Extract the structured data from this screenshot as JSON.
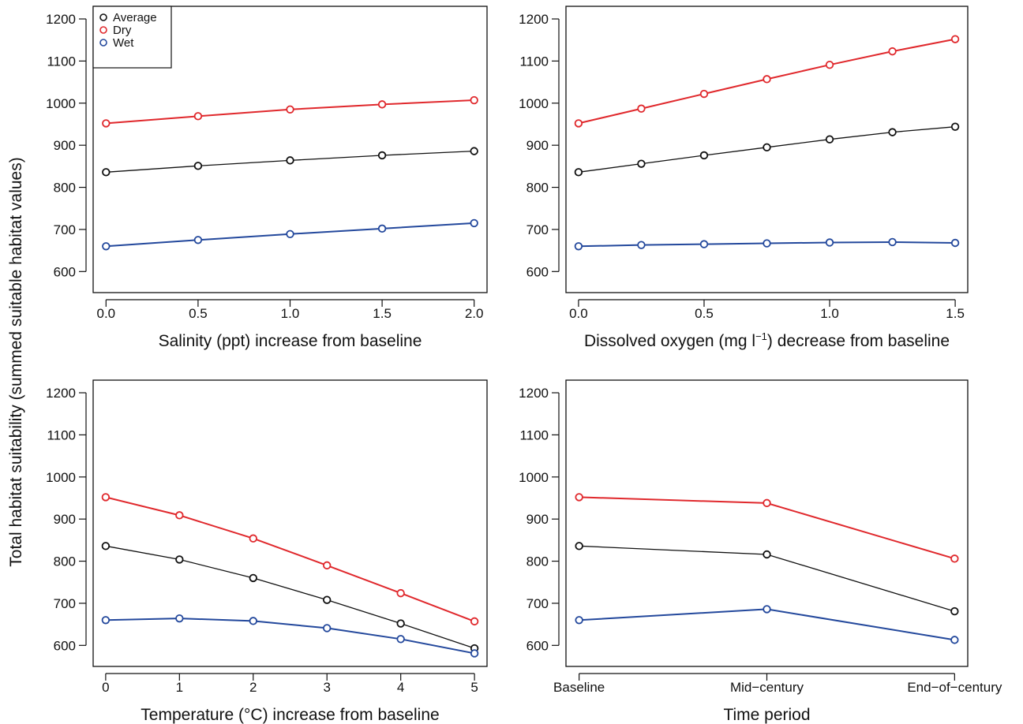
{
  "colors": {
    "Average": "#111111",
    "Dry": "#e0282c",
    "Wet": "#23489c"
  },
  "ylabel": "Total habitat suitability  (summed suitable habitat values)",
  "chart_data": [
    {
      "type": "line",
      "xlabel": "Salinity (ppt) increase from baseline",
      "x": [
        0.0,
        0.5,
        1.0,
        1.5,
        2.0
      ],
      "xticks": [
        "0.0",
        "0.5",
        "1.0",
        "1.5",
        "2.0"
      ],
      "xlim": [
        -0.07,
        2.07
      ],
      "ylim": [
        550,
        1230
      ],
      "yticks": [
        600,
        700,
        800,
        900,
        1000,
        1100,
        1200
      ],
      "legend": {
        "position": "top-left",
        "entries": [
          "Average",
          "Dry",
          "Wet"
        ]
      },
      "series": [
        {
          "name": "Dry",
          "values": [
            952,
            969,
            985,
            997,
            1007
          ]
        },
        {
          "name": "Average",
          "values": [
            836,
            851,
            864,
            876,
            886
          ]
        },
        {
          "name": "Wet",
          "values": [
            660,
            675,
            689,
            702,
            715
          ]
        }
      ]
    },
    {
      "type": "line",
      "xlabel": "Dissolved oxygen (mg l",
      "xlabel_sup": "−1",
      "xlabel_end": ") decrease from baseline",
      "x": [
        0.0,
        0.25,
        0.5,
        0.75,
        1.0,
        1.25,
        1.5
      ],
      "xticks": [
        "0.0",
        "0.5",
        "1.0",
        "1.5"
      ],
      "xtick_values": [
        0.0,
        0.5,
        1.0,
        1.5
      ],
      "xlim": [
        -0.05,
        1.55
      ],
      "ylim": [
        550,
        1230
      ],
      "yticks": [
        600,
        700,
        800,
        900,
        1000,
        1100,
        1200
      ],
      "series": [
        {
          "name": "Dry",
          "values": [
            952,
            987,
            1022,
            1057,
            1091,
            1123,
            1152
          ]
        },
        {
          "name": "Average",
          "values": [
            836,
            856,
            876,
            895,
            914,
            931,
            944
          ]
        },
        {
          "name": "Wet",
          "values": [
            660,
            663,
            665,
            667,
            669,
            670,
            668
          ]
        }
      ]
    },
    {
      "type": "line",
      "xlabel": "Temperature (°C) increase from baseline",
      "x": [
        0,
        1,
        2,
        3,
        4,
        5
      ],
      "xticks": [
        "0",
        "1",
        "2",
        "3",
        "4",
        "5"
      ],
      "xlim": [
        -0.17,
        5.17
      ],
      "ylim": [
        550,
        1230
      ],
      "yticks": [
        600,
        700,
        800,
        900,
        1000,
        1100,
        1200
      ],
      "series": [
        {
          "name": "Dry",
          "values": [
            952,
            909,
            854,
            790,
            724,
            657
          ]
        },
        {
          "name": "Average",
          "values": [
            836,
            804,
            760,
            708,
            652,
            593
          ]
        },
        {
          "name": "Wet",
          "values": [
            660,
            664,
            658,
            641,
            615,
            581
          ]
        }
      ]
    },
    {
      "type": "line",
      "xlabel": "Time period",
      "x": [
        0,
        1,
        2
      ],
      "xticks": [
        "Baseline",
        "Mid−century",
        "End−of−century"
      ],
      "xlim": [
        -0.07,
        2.07
      ],
      "ylim": [
        550,
        1230
      ],
      "yticks": [
        600,
        700,
        800,
        900,
        1000,
        1100,
        1200
      ],
      "series": [
        {
          "name": "Dry",
          "values": [
            952,
            938,
            806
          ]
        },
        {
          "name": "Average",
          "values": [
            836,
            816,
            681
          ]
        },
        {
          "name": "Wet",
          "values": [
            660,
            686,
            613
          ]
        }
      ]
    }
  ]
}
